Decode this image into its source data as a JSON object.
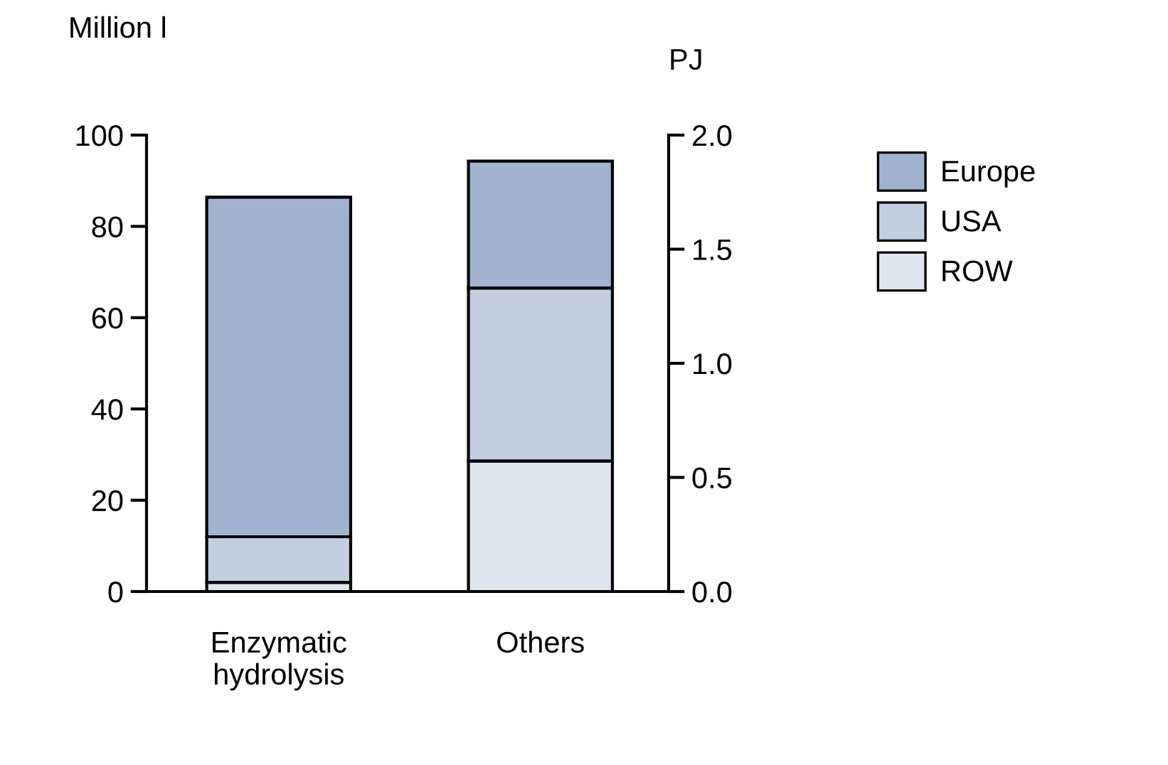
{
  "chart_data": {
    "type": "bar",
    "stacked": true,
    "ylabel": "Million l",
    "y2label": "PJ",
    "categories": [
      "Enzymatic\nhydrolysis",
      "Others"
    ],
    "series": [
      {
        "name": "ROW",
        "color": "#dfe5ef",
        "values": [
          2,
          28.6
        ]
      },
      {
        "name": "USA",
        "color": "#c3cfe1",
        "values": [
          10,
          37.9
        ]
      },
      {
        "name": "Europe",
        "color": "#a0b2cf",
        "values": [
          74.4,
          27.8
        ]
      }
    ],
    "ylim": [
      0,
      100
    ],
    "yticks": [
      0,
      20,
      40,
      60,
      80,
      100
    ],
    "y2lim": [
      0,
      2
    ],
    "y2ticks": [
      {
        "value": 0,
        "label": "0.0"
      },
      {
        "value": 0.5,
        "label": "0.5"
      },
      {
        "value": 1,
        "label": "1.0"
      },
      {
        "value": 1.5,
        "label": "1.5"
      },
      {
        "value": 2,
        "label": "2.0"
      }
    ],
    "grid": false,
    "legend": "top right"
  }
}
